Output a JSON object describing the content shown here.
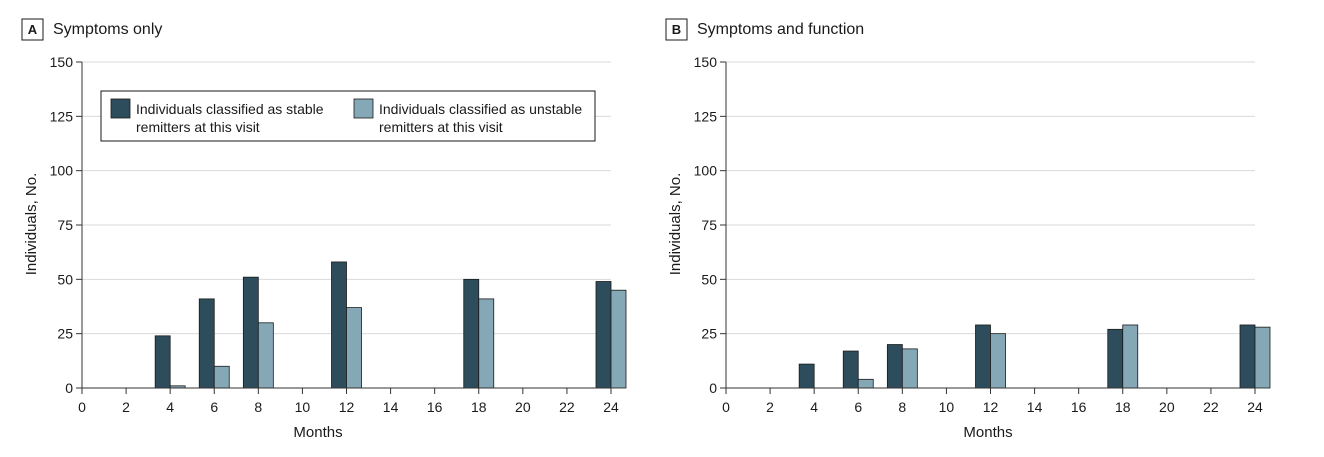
{
  "colors": {
    "stable": "#2e4d5c",
    "unstable": "#85a8b6",
    "grid": "#d9d9d9",
    "axis": "#333333"
  },
  "legend": {
    "stable_line1": "Individuals classified as stable",
    "stable_line2": "remitters at this visit",
    "unstable_line1": "Individuals classified as unstable",
    "unstable_line2": "remitters at this visit"
  },
  "chart_data": [
    {
      "type": "bar",
      "panel_letter": "A",
      "title": "Symptoms only",
      "xlabel": "Months",
      "ylabel": "Individuals, No.",
      "xlim": [
        0,
        24
      ],
      "ylim": [
        0,
        150
      ],
      "xticks": [
        0,
        2,
        4,
        6,
        8,
        10,
        12,
        14,
        16,
        18,
        20,
        22,
        24
      ],
      "yticks": [
        0,
        25,
        50,
        75,
        100,
        125,
        150
      ],
      "grid": true,
      "legend": "top-left",
      "categories": [
        4,
        6,
        8,
        12,
        18,
        24
      ],
      "series": [
        {
          "name": "Individuals classified as stable remitters at this visit",
          "values": [
            24,
            41,
            51,
            58,
            50,
            49
          ]
        },
        {
          "name": "Individuals classified as unstable remitters at this visit",
          "values": [
            1,
            10,
            30,
            37,
            41,
            45
          ]
        }
      ]
    },
    {
      "type": "bar",
      "panel_letter": "B",
      "title": "Symptoms and function",
      "xlabel": "Months",
      "ylabel": "Individuals, No.",
      "xlim": [
        0,
        24
      ],
      "ylim": [
        0,
        150
      ],
      "xticks": [
        0,
        2,
        4,
        6,
        8,
        10,
        12,
        14,
        16,
        18,
        20,
        22,
        24
      ],
      "yticks": [
        0,
        25,
        50,
        75,
        100,
        125,
        150
      ],
      "grid": true,
      "categories": [
        4,
        6,
        8,
        12,
        18,
        24
      ],
      "series": [
        {
          "name": "Individuals classified as stable remitters at this visit",
          "values": [
            11,
            17,
            20,
            29,
            27,
            29
          ]
        },
        {
          "name": "Individuals classified as unstable remitters at this visit",
          "values": [
            0,
            4,
            18,
            25,
            29,
            28
          ]
        }
      ]
    }
  ]
}
